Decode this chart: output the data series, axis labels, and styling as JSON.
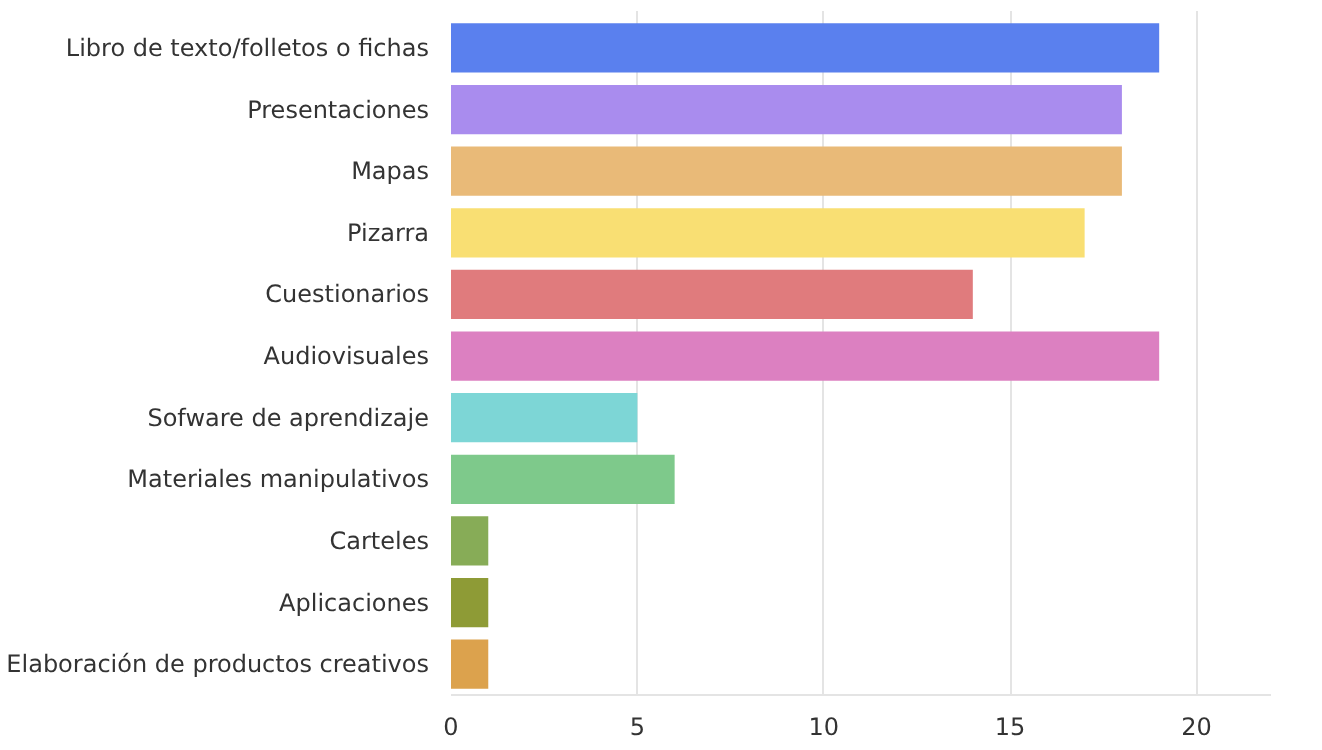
{
  "chart_data": {
    "type": "bar",
    "orientation": "horizontal",
    "categories": [
      "Libro de texto/folletos o fichas",
      "Presentaciones",
      "Mapas",
      "Pizarra",
      "Cuestionarios",
      "Audiovisuales",
      "Sofware de aprendizaje",
      "Materiales manipulativos",
      "Carteles",
      "Aplicaciones",
      "Elaboración de productos creativos"
    ],
    "values": [
      19,
      18,
      18,
      17,
      14,
      19,
      5,
      6,
      1,
      1,
      1
    ],
    "colors": [
      "#5a80ee",
      "#a98cee",
      "#e9ba78",
      "#f9df73",
      "#e07b7d",
      "#dc80c1",
      "#7dd6d6",
      "#7ec98b",
      "#87ac57",
      "#8e9b36",
      "#dca24d"
    ],
    "xlim": [
      0,
      22
    ],
    "xticks": [
      0,
      5,
      10,
      15,
      20
    ],
    "grid": "x"
  }
}
